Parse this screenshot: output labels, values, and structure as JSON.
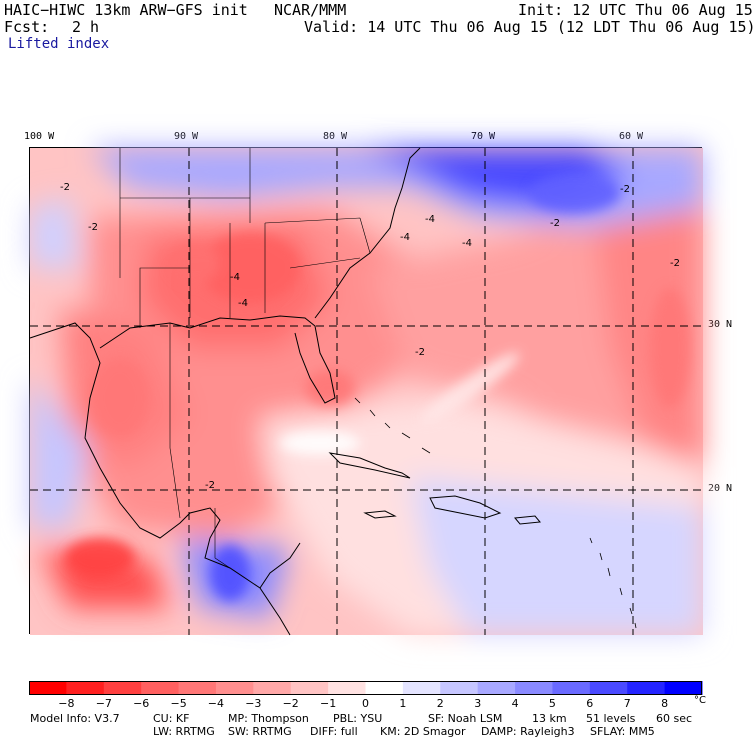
{
  "header": {
    "model": "HAIC−HIWC 13km ARW−GFS init",
    "org": "NCAR/MMM",
    "init": "Init: 12 UTC Thu 06 Aug 15",
    "fcst_label": "Fcst:",
    "fcst_value": "2 h",
    "valid": "Valid: 14 UTC Thu 06 Aug 15 (12 LDT Thu 06 Aug 15)",
    "field": "Lifted index"
  },
  "map": {
    "lon_labels": [
      "100 W",
      "90 W",
      "80 W",
      "70 W",
      "60 W"
    ],
    "lat_labels": [
      "30 N",
      "20 N"
    ],
    "contour_labels": [
      "-2",
      "-2",
      "-4",
      "-4",
      "-4",
      "-4",
      "-2",
      "-2",
      "-2",
      "-2",
      "-4",
      "-2"
    ],
    "colors": {
      "border": "#000000",
      "grid": "#000000"
    }
  },
  "colorbar": {
    "levels": [
      "−8",
      "−7",
      "−6",
      "−5",
      "−4",
      "−3",
      "−2",
      "−1",
      "0",
      "1",
      "2",
      "3",
      "4",
      "5",
      "6",
      "7",
      "8"
    ],
    "unit": "°C",
    "colors": [
      "#ff0000",
      "#ff2020",
      "#ff4040",
      "#ff6060",
      "#ff7777",
      "#ff8f8f",
      "#ffa8a8",
      "#ffc4c4",
      "#ffe2e2",
      "#ffffff",
      "#e4e4ff",
      "#c6c6ff",
      "#a8a8ff",
      "#8a8aff",
      "#6a6aff",
      "#4a4aff",
      "#2424ff",
      "#0000ff"
    ]
  },
  "model_info": {
    "line1": [
      "Model Info: V3.7",
      "CU: KF",
      "MP: Thompson",
      "PBL: YSU",
      "SF: Noah LSM",
      "13 km",
      "51 levels",
      "60 sec"
    ],
    "line2": [
      "LW: RRTMG",
      "SW: RRTMG",
      "DIFF: full",
      "KM: 2D Smagor",
      "DAMP: Rayleigh3",
      "SFLAY: MM5"
    ]
  }
}
